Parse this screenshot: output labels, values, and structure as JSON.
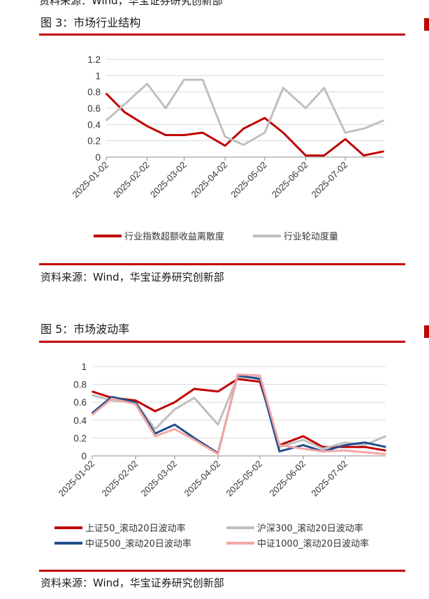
{
  "top_source": "资料来源：Wind，华宝证券研究创新部",
  "fig3": {
    "caption": "图 3：市场行业结构",
    "source": "资料来源：Wind，华宝证券研究创新部"
  },
  "fig5": {
    "caption": "图 5：市场波动率",
    "source": "资料来源：Wind，华宝证券研究创新部"
  },
  "colors": {
    "rule": "#c00000",
    "dark_red": "#c00000",
    "gray": "#bfbfbf",
    "navy": "#1f4e8c",
    "pink": "#f4a6a6"
  },
  "chart_data": [
    {
      "type": "line",
      "title": "",
      "x": [
        "2025-01-02",
        "2025-01-16",
        "2025-02-02",
        "2025-02-16",
        "2025-03-02",
        "2025-03-16",
        "2025-04-02",
        "2025-04-16",
        "2025-05-02",
        "2025-05-16",
        "2025-06-02",
        "2025-06-16",
        "2025-07-02",
        "2025-07-16",
        "2025-07-31"
      ],
      "xticks": [
        "2025-01-02",
        "2025-02-02",
        "2025-03-02",
        "2025-04-02",
        "2025-05-02",
        "2025-06-02",
        "2025-07-02"
      ],
      "ylim": [
        0,
        1.2
      ],
      "yticks": [
        "0",
        "0.2",
        "0.4",
        "0.6",
        "0.8",
        "1",
        "1.2"
      ],
      "grid": true,
      "legend_position": "bottom",
      "series": [
        {
          "name": "行业指数超额收益离散度",
          "color": "#c00000",
          "values": [
            0.78,
            0.55,
            0.38,
            0.27,
            0.27,
            0.3,
            0.14,
            0.35,
            0.48,
            0.3,
            0.02,
            0.02,
            0.22,
            0.02,
            0.07
          ]
        },
        {
          "name": "行业轮动度量",
          "color": "#bfbfbf",
          "values": [
            0.45,
            0.65,
            0.9,
            0.6,
            0.95,
            0.95,
            0.25,
            0.15,
            0.3,
            0.85,
            0.6,
            0.85,
            0.3,
            0.35,
            0.45
          ]
        }
      ]
    },
    {
      "type": "line",
      "title": "",
      "x": [
        "2025-01-02",
        "2025-01-16",
        "2025-02-02",
        "2025-02-16",
        "2025-03-02",
        "2025-03-16",
        "2025-04-02",
        "2025-04-16",
        "2025-05-02",
        "2025-05-16",
        "2025-06-02",
        "2025-06-16",
        "2025-07-02",
        "2025-07-16",
        "2025-07-31"
      ],
      "xticks": [
        "2025-01-02",
        "2025-02-02",
        "2025-03-02",
        "2025-04-02",
        "2025-05-02",
        "2025-06-02",
        "2025-07-02"
      ],
      "ylim": [
        0,
        1
      ],
      "yticks": [
        "0",
        "0.2",
        "0.4",
        "0.6",
        "0.8",
        "1"
      ],
      "grid": true,
      "legend_position": "bottom",
      "series": [
        {
          "name": "上证50_滚动20日波动率",
          "color": "#c00000",
          "values": [
            0.72,
            0.65,
            0.62,
            0.5,
            0.6,
            0.75,
            0.72,
            0.86,
            0.83,
            0.12,
            0.22,
            0.1,
            0.1,
            0.1,
            0.06
          ]
        },
        {
          "name": "沪深300_滚动20日波动率",
          "color": "#bfbfbf",
          "values": [
            0.68,
            0.62,
            0.6,
            0.3,
            0.52,
            0.65,
            0.35,
            0.88,
            0.88,
            0.1,
            0.18,
            0.08,
            0.15,
            0.12,
            0.22
          ]
        },
        {
          "name": "中证500_滚动20日波动率",
          "color": "#1f4e8c",
          "values": [
            0.48,
            0.66,
            0.6,
            0.25,
            0.35,
            0.2,
            0.03,
            0.9,
            0.86,
            0.05,
            0.12,
            0.05,
            0.12,
            0.15,
            0.1
          ]
        },
        {
          "name": "中证1000_滚动20日波动率",
          "color": "#f4a6a6",
          "values": [
            0.46,
            0.64,
            0.58,
            0.22,
            0.3,
            0.18,
            0.02,
            0.91,
            0.9,
            0.12,
            0.08,
            0.05,
            0.06,
            0.04,
            0.02
          ]
        }
      ]
    }
  ]
}
